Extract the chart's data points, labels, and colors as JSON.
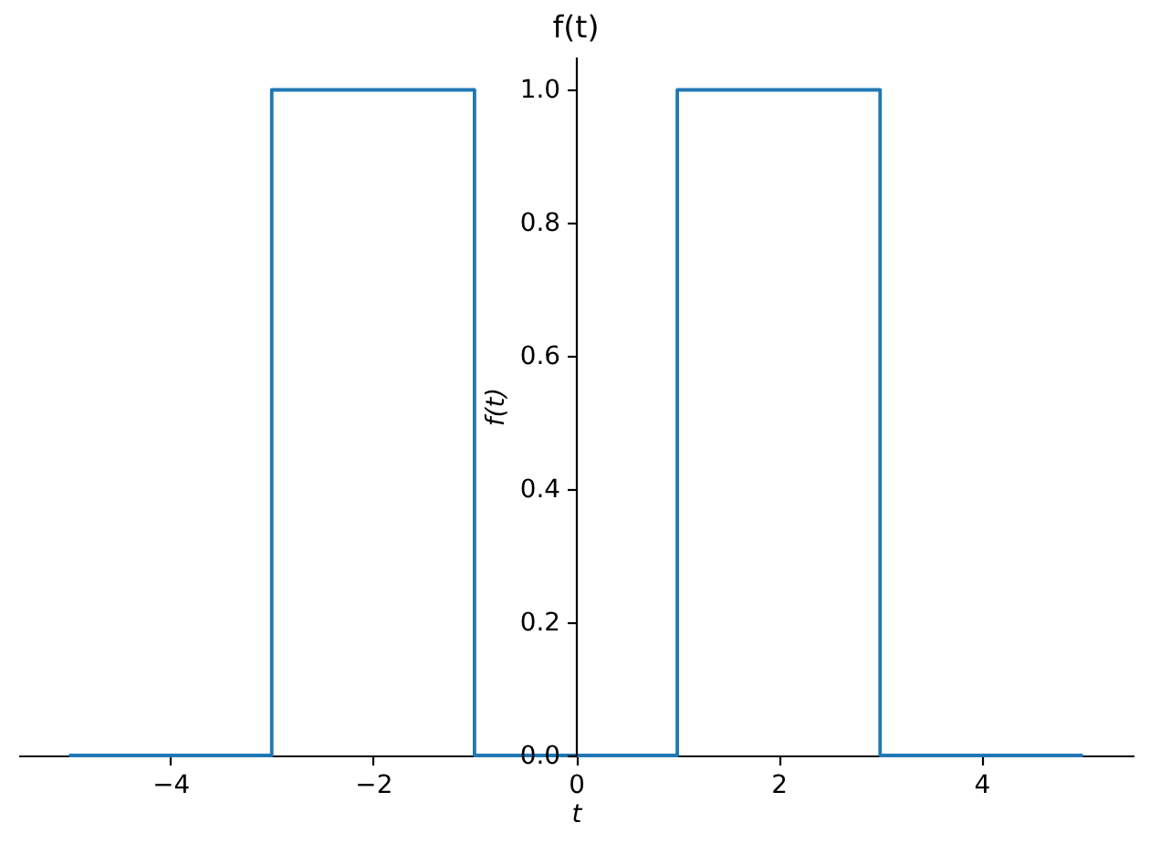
{
  "chart_data": {
    "type": "step",
    "title": "f(t)",
    "xlabel": "t",
    "ylabel": "f(t)",
    "x": [
      -5,
      -3,
      -1,
      1,
      3,
      5
    ],
    "values": [
      0,
      1,
      0,
      1,
      0,
      0
    ],
    "color": "#1f77b4",
    "xlim": [
      -5.5,
      5.5
    ],
    "ylim": [
      0,
      1.05
    ],
    "xticks": [
      -4,
      -2,
      0,
      2,
      4
    ],
    "yticks": [
      {
        "value": 0,
        "label": "0.0"
      },
      {
        "value": 0.2,
        "label": "0.2"
      },
      {
        "value": 0.4,
        "label": "0.4"
      },
      {
        "value": 0.6,
        "label": "0.6"
      },
      {
        "value": 0.8,
        "label": "0.8"
      },
      {
        "value": 1,
        "label": "1.0"
      }
    ]
  }
}
